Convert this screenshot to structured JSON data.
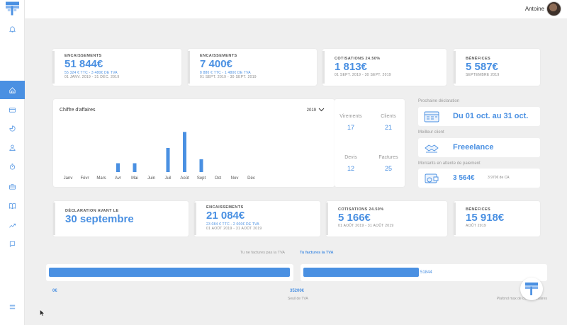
{
  "user": {
    "name": "Antoine"
  },
  "sidebar": {
    "items": [
      "bell-icon",
      "home-icon",
      "card-icon",
      "chart-pie-icon",
      "user-icon",
      "stopwatch-icon",
      "briefcase-icon",
      "book-icon",
      "trend-icon",
      "receipt-icon",
      "menu-icon"
    ]
  },
  "stats_top": [
    {
      "label": "ENCAISSEMENTS",
      "value": "51 844€",
      "sub": "55 324 € TTC - 3 480€ DE TVA",
      "date": "01 JANV. 2019 - 31 DÉC. 2019"
    },
    {
      "label": "ENCAISSEMENTS",
      "value": "7 400€",
      "sub": "8 880 € TTC - 1 480€ DE TVA",
      "date": "01 SEPT. 2019 - 30 SEPT. 2019"
    },
    {
      "label": "COTISATIONS 24.50%",
      "value": "1 813€",
      "date": "01 SEPT. 2019 - 30 SEPT. 2019"
    },
    {
      "label": "BÉNÉFICES",
      "value": "5 587€",
      "date": "SEPTEMBRE 2019"
    }
  ],
  "chart_data": {
    "type": "bar",
    "title": "Chiffre d'affaires",
    "categories": [
      "Janv",
      "Févr",
      "Mars",
      "Avr",
      "Mai",
      "Juin",
      "Juil",
      "Août",
      "Sept",
      "Oct",
      "Nov",
      "Déc"
    ],
    "values": [
      0,
      0,
      0,
      1100,
      1100,
      0,
      3000,
      5000,
      1600,
      0,
      0,
      0
    ],
    "ylim": [
      0,
      6000
    ],
    "color": "#4a90e2",
    "year": "2019"
  },
  "counters": [
    {
      "label": "Virements",
      "value": "17"
    },
    {
      "label": "Clients",
      "value": "21"
    },
    {
      "label": "Devis",
      "value": "12"
    },
    {
      "label": "Factures",
      "value": "25"
    }
  ],
  "info": {
    "declaration_label": "Prochaine déclaration",
    "declaration_value": "Du 01 oct. au 31 oct.",
    "client_label": "Meilleur client",
    "client_value": "Freeelance",
    "pending_label": "Montants en attente de paiement",
    "pending_value": "3 564€",
    "pending_sub": "3 970€ de CA"
  },
  "stats_bottom": [
    {
      "label": "DÉCLARATION AVANT LE",
      "value": "30 septembre"
    },
    {
      "label": "ENCAISSEMENTS",
      "value": "21 084€",
      "sub": "23 084 € TTC - 2 000€ DE TVA",
      "date": "01 AOÛT 2019 - 31 AOÛT 2019"
    },
    {
      "label": "COTISATIONS 24.50%",
      "value": "5 166€",
      "date": "01 AOÛT 2019 - 31 AOÛT 2019"
    },
    {
      "label": "BÉNÉFICES",
      "value": "15 918€",
      "date": "AOÛT 2019"
    }
  ],
  "tva": {
    "option_off": "Tu ne factures pas la TVA",
    "option_on": "Tu factures la TVA",
    "bar2_value": "51844",
    "bar2_fill_pct": 48,
    "scale_start": "0€",
    "scale_mid": "35200€",
    "scale_mid_label": "Seuil de TVA",
    "scale_end_label": "Plafond max de chiffre d'affaires"
  },
  "colors": {
    "accent": "#4a90e2"
  }
}
